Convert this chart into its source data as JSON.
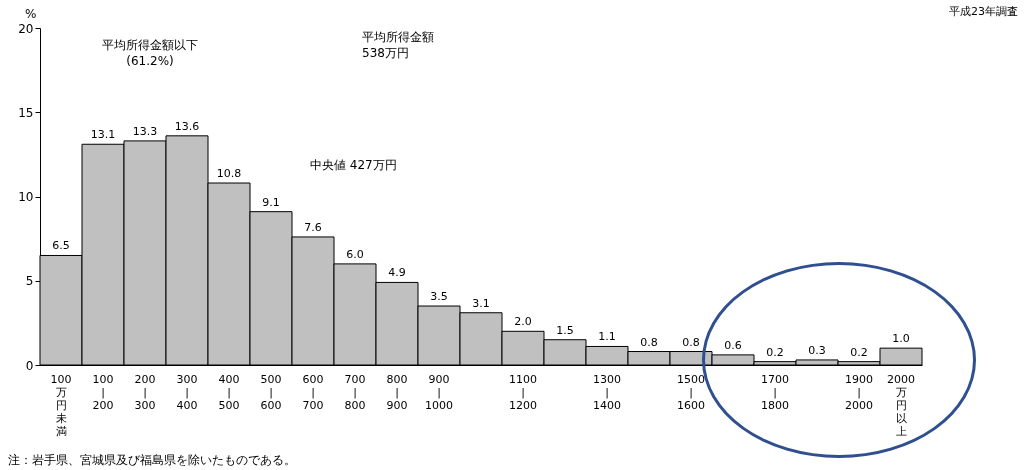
{
  "chart_data": {
    "type": "bar",
    "subtitle": "平成23年調査",
    "ylabel": "%",
    "categories": [
      "100万円未満",
      "100\n|\n200",
      "200\n|\n300",
      "300\n|\n400",
      "400\n|\n500",
      "500\n|\n600",
      "600\n|\n700",
      "700\n|\n800",
      "800\n|\n900",
      "900\n|\n1000",
      null,
      "1100\n|\n1200",
      null,
      "1300\n|\n1400",
      null,
      "1500\n|\n1600",
      null,
      "1700\n|\n1800",
      null,
      "1900\n|\n2000",
      "2000万円以上"
    ],
    "values": [
      6.5,
      13.1,
      13.3,
      13.6,
      10.8,
      9.1,
      7.6,
      6.0,
      4.9,
      3.5,
      3.1,
      2.0,
      1.5,
      1.1,
      0.8,
      0.8,
      0.6,
      0.2,
      0.3,
      0.2,
      1.0
    ],
    "value_labels": [
      "6.5",
      "13.1",
      "13.3",
      "13.6",
      "10.8",
      "9.1",
      "7.6",
      "6.0",
      "4.9",
      "3.5",
      "3.1",
      "2.0",
      "1.5",
      "1.1",
      "0.8",
      "0.8",
      "0.6",
      "0.2",
      "0.3",
      "0.2",
      "1.0"
    ],
    "color": "#c0c0c0",
    "ylim": [
      0,
      20
    ],
    "yticks": [
      0,
      5,
      10,
      15,
      20
    ],
    "annotations": [
      "平均所得金額以下\n(61.2%)",
      "平均所得金額\n538万円",
      "中央値 427万円",
      "注：岩手県、宮城県及び福島県を除いたものである。"
    ]
  }
}
